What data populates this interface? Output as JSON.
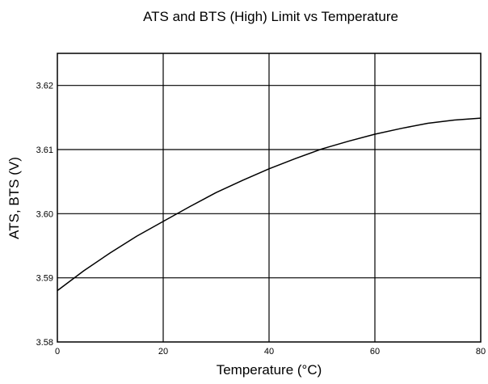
{
  "chart_data": {
    "type": "line",
    "title": "ATS and BTS (High) Limit vs Temperature",
    "xlabel": "Temperature (°C)",
    "ylabel": "ATS, BTS (V)",
    "xlim": [
      0,
      80
    ],
    "ylim": [
      3.58,
      3.625
    ],
    "x_ticks": [
      "0",
      "20",
      "40",
      "60",
      "80"
    ],
    "y_ticks": [
      "3.58",
      "3.59",
      "3.60",
      "3.61",
      "3.62"
    ],
    "grid": true,
    "legend": "none",
    "series": [
      {
        "x": [
          0,
          5,
          10,
          15,
          20,
          25,
          30,
          35,
          40,
          45,
          50,
          55,
          60,
          65,
          70,
          75,
          80
        ],
        "y": [
          3.588,
          3.5911,
          3.5939,
          3.5965,
          3.5988,
          3.6011,
          3.6033,
          3.6052,
          3.607,
          3.6086,
          3.6101,
          3.6113,
          3.6124,
          3.6133,
          3.6141,
          3.6146,
          3.6149
        ]
      }
    ]
  }
}
